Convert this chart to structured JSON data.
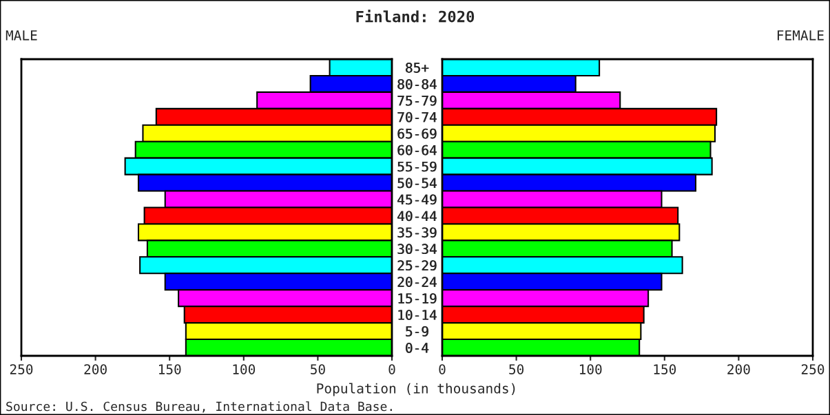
{
  "chart_data": [
    {
      "type": "bar",
      "orientation": "horizontal",
      "title": "Finland: 2020",
      "subtitle": "MALE",
      "xlabel": "Population (in thousands)",
      "annotations": [
        "Source: U.S. Census Bureau, International Data Base."
      ],
      "categories": [
        "85+",
        "80-84",
        "75-79",
        "70-74",
        "65-69",
        "60-64",
        "55-59",
        "50-54",
        "45-49",
        "40-44",
        "35-39",
        "30-34",
        "25-29",
        "20-24",
        "15-19",
        "10-14",
        "5-9",
        "0-4"
      ],
      "values": [
        42,
        55,
        91,
        159,
        168,
        173,
        180,
        171,
        153,
        167,
        171,
        165,
        170,
        153,
        144,
        140,
        139,
        139
      ],
      "colors": [
        "#00ffff",
        "#0000ff",
        "#ff00ff",
        "#ff0000",
        "#ffff00",
        "#00ff00",
        "#00ffff",
        "#0000ff",
        "#ff00ff",
        "#ff0000",
        "#ffff00",
        "#00ff00",
        "#00ffff",
        "#0000ff",
        "#ff00ff",
        "#ff0000",
        "#ffff00",
        "#00ff00"
      ],
      "xlim": [
        250,
        0
      ],
      "xticks": [
        250,
        200,
        150,
        100,
        50,
        0
      ],
      "grid": false,
      "legend": false
    },
    {
      "type": "bar",
      "orientation": "horizontal",
      "subtitle": "FEMALE",
      "categories": [
        "85+",
        "80-84",
        "75-79",
        "70-74",
        "65-69",
        "60-64",
        "55-59",
        "50-54",
        "45-49",
        "40-44",
        "35-39",
        "30-34",
        "25-29",
        "20-24",
        "15-19",
        "10-14",
        "5-9",
        "0-4"
      ],
      "values": [
        106,
        90,
        120,
        185,
        184,
        181,
        182,
        171,
        148,
        159,
        160,
        155,
        162,
        148,
        139,
        136,
        134,
        133
      ],
      "colors": [
        "#00ffff",
        "#0000ff",
        "#ff00ff",
        "#ff0000",
        "#ffff00",
        "#00ff00",
        "#00ffff",
        "#0000ff",
        "#ff00ff",
        "#ff0000",
        "#ffff00",
        "#00ff00",
        "#00ffff",
        "#0000ff",
        "#ff00ff",
        "#ff0000",
        "#ffff00",
        "#00ff00"
      ],
      "xlim": [
        0,
        250
      ],
      "xticks": [
        0,
        50,
        100,
        150,
        200,
        250
      ],
      "grid": false,
      "legend": false
    }
  ]
}
